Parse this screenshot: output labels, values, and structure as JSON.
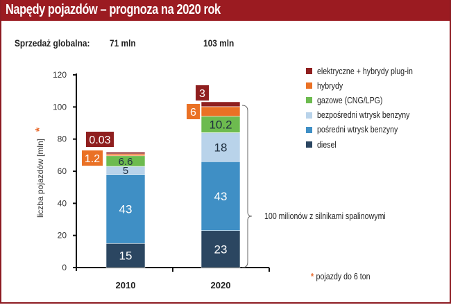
{
  "header": {
    "title": "Napędy pojazdów – prognoza na 2020 rok"
  },
  "sales": {
    "label": "Sprzedaż globalna:",
    "values": [
      "71 mln",
      "103 mln"
    ]
  },
  "brace_label": "100 milionów z silnikami spalinowymi",
  "footnote": {
    "star": "*",
    "text": "pojazdy do 6 ton"
  },
  "colors": {
    "header": "#9b1b21",
    "star": "#e8692b"
  },
  "chart_data": {
    "type": "bar",
    "stacked": true,
    "title": "Napędy pojazdów – prognoza na 2020 rok",
    "xlabel": "",
    "ylabel": "liczba pojazdów [mln]",
    "ylabel_marker": "*",
    "ylim": [
      0,
      120
    ],
    "yticks": [
      0,
      20,
      40,
      60,
      80,
      100,
      120
    ],
    "categories": [
      "2010",
      "2020"
    ],
    "legend_position": "right",
    "series": [
      {
        "name": "diesel",
        "color": "#2b4661",
        "values": [
          15,
          23
        ],
        "labels": [
          "15",
          "23"
        ],
        "label_style": "inside-light"
      },
      {
        "name": "pośredni wtrysk benzyny",
        "color": "#3f8fc5",
        "values": [
          43,
          43
        ],
        "labels": [
          "43",
          "43"
        ],
        "label_style": "inside-light"
      },
      {
        "name": "bezpośredni wtrysk benzyny",
        "color": "#b9d3ea",
        "values": [
          5,
          18
        ],
        "labels": [
          "5",
          "18"
        ],
        "label_style": "inside-dark"
      },
      {
        "name": "gazowe (CNG/LPG)",
        "color": "#6dbb4f",
        "values": [
          6.6,
          10.2
        ],
        "labels": [
          "6.6",
          "10.2"
        ],
        "label_style": "inside-dark"
      },
      {
        "name": "hybrydy",
        "color": "#ea7125",
        "values": [
          1.2,
          6
        ],
        "labels": [
          "1.2",
          "6"
        ],
        "label_style": "callout"
      },
      {
        "name": "elektryczne + hybrydy plug-in",
        "color": "#8f1f1f",
        "values": [
          0.03,
          3
        ],
        "labels": [
          "0.03",
          "3"
        ],
        "label_style": "callout"
      }
    ],
    "totals": [
      "71 mln",
      "103 mln"
    ]
  }
}
